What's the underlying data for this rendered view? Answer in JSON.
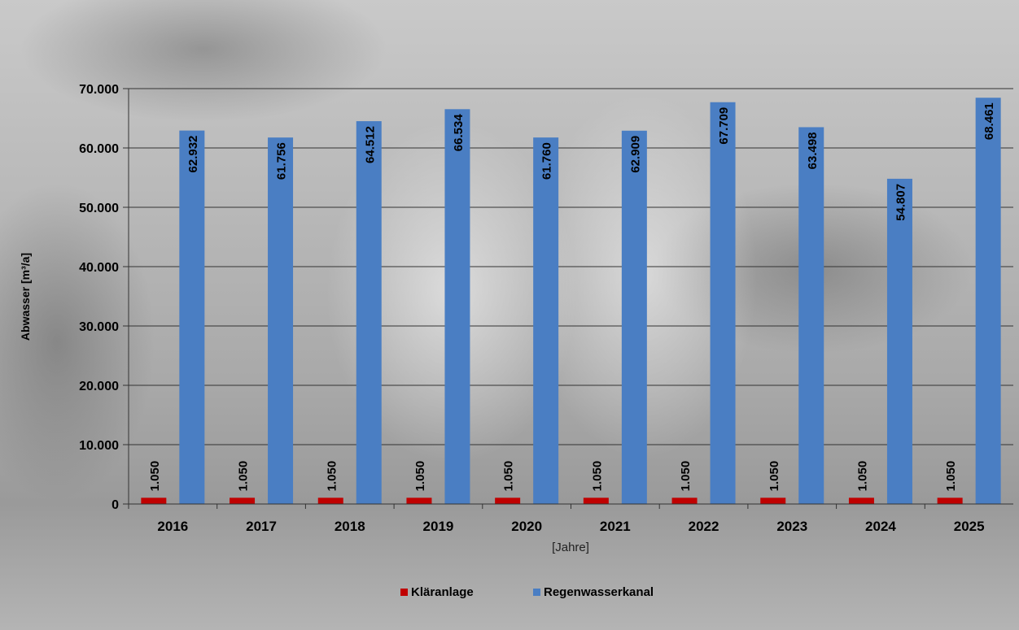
{
  "chart_data": {
    "type": "bar",
    "categories": [
      "2016",
      "2017",
      "2018",
      "2019",
      "2020",
      "2021",
      "2022",
      "2023",
      "2024",
      "2025"
    ],
    "series": [
      {
        "name": "Kläranlage",
        "values": [
          1050,
          1050,
          1050,
          1050,
          1050,
          1050,
          1050,
          1050,
          1050,
          1050
        ],
        "color": "#c00000",
        "labels": [
          "1.050",
          "1.050",
          "1.050",
          "1.050",
          "1.050",
          "1.050",
          "1.050",
          "1.050",
          "1.050",
          "1.050"
        ]
      },
      {
        "name": "Regenwasserkanal",
        "values": [
          62932,
          61756,
          64512,
          66534,
          61760,
          62909,
          67709,
          63498,
          54807,
          68461
        ],
        "color": "#4a7ec3",
        "labels": [
          "62.932",
          "61.756",
          "64.512",
          "66.534",
          "61.760",
          "62.909",
          "67.709",
          "63.498",
          "54.807",
          "68.461"
        ]
      }
    ],
    "y_ticks": [
      0,
      10000,
      20000,
      30000,
      40000,
      50000,
      60000,
      70000
    ],
    "y_tick_labels": [
      "0",
      "10.000",
      "20.000",
      "30.000",
      "40.000",
      "50.000",
      "60.000",
      "70.000"
    ],
    "ylim": [
      0,
      70000
    ],
    "ylabel": "Abwasser [m³/a]",
    "xlabel": "[Jahre]",
    "grid": true,
    "legend_position": "bottom"
  }
}
